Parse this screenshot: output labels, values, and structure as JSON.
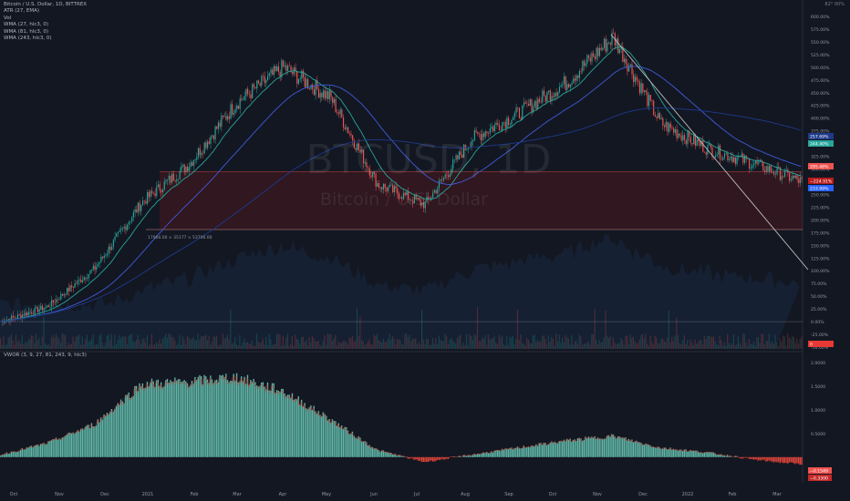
{
  "legend": {
    "symbol": "Bitcoin / U.S. Dollar, 1D, BITTREX",
    "lines": [
      "ATR (27, EMA)",
      "Vol",
      "WMA (27, hlc3, 0)",
      "WMA (81, hlc3, 0)",
      "WMA (243, hlc3, 0)"
    ]
  },
  "watermark": {
    "big": "BTCUSD, 1D",
    "small": "Bitcoin / U.S. Dollar"
  },
  "corner_label": "82° 00%",
  "oscillator_legend": "VWOR (3, 9, 27, 81, 243, 9, hlc3)",
  "range_box_label": "17960.00 × 35177 × 53706.00",
  "price_axis": {
    "labels": [
      "600.00%",
      "575.00%",
      "550.00%",
      "525.00%",
      "500.00%",
      "475.00%",
      "450.00%",
      "425.00%",
      "400.00%",
      "375.00%",
      "350.00%",
      "325.00%",
      "300.00%",
      "275.00%",
      "250.00%",
      "225.00%",
      "200.00%",
      "175.00%",
      "150.00%",
      "125.00%",
      "100.00%",
      "75.00%",
      "50.00%",
      "25.00%",
      "0.00%",
      "-25.00%",
      "-50.00%"
    ],
    "tags": [
      {
        "text": "257.69%",
        "color": "#1e3a8a"
      },
      {
        "text": "244.40%",
        "color": "#26a69a"
      },
      {
        "text": "295.48%",
        "color": "#ef5350"
      },
      {
        "text": "−224.91%",
        "color": "#b71c1c"
      },
      {
        "text": "233.99%",
        "color": "#2962ff"
      },
      {
        "text": "0",
        "color": "#e53935"
      }
    ]
  },
  "osc_axis": {
    "labels": [
      "2.0000",
      "1.5000",
      "1.0000",
      "0.5000"
    ],
    "tags": [
      {
        "text": "−0.1549",
        "color": "#ef5350"
      },
      {
        "text": "−0.3300",
        "color": "#c62828"
      }
    ]
  },
  "time_axis": {
    "labels": [
      "Oct",
      "Nov",
      "Dec",
      "2021",
      "Feb",
      "Mar",
      "Apr",
      "May",
      "Jun",
      "Jul",
      "Aug",
      "Sep",
      "Oct",
      "Nov",
      "Dec",
      "2022",
      "Feb",
      "Mar"
    ]
  },
  "colors": {
    "bg": "#131722",
    "up": "#26a69a",
    "down": "#ef5350",
    "wma27": "#26a69a",
    "wma81": "#3f5bd8",
    "wma243": "#1e3a8a",
    "hist_up": "#5fb5a7",
    "hist_down": "#e0453a",
    "trend": "#c0c0c0"
  },
  "chart_data": [
    {
      "type": "line",
      "title": "Bitcoin / U.S. Dollar, 1D, BITTREX",
      "ylabel": "% change",
      "scale": "log",
      "x": [
        "Oct",
        "Nov",
        "Dec",
        "2021",
        "Feb",
        "Mar",
        "Apr",
        "May",
        "Jun",
        "Jul",
        "Aug",
        "Sep",
        "Oct",
        "Nov",
        "Dec",
        "2022",
        "Feb",
        "Mar"
      ],
      "series": [
        {
          "name": "BTCUSD",
          "values": [
            0,
            30,
            105,
            235,
            310,
            430,
            500,
            440,
            270,
            230,
            360,
            410,
            470,
            560,
            390,
            340,
            310,
            275
          ]
        }
      ],
      "ylim": [
        -50,
        600
      ]
    },
    {
      "type": "bar",
      "title": "VWOR (3, 9, 27, 81, 243, 9, hlc3)",
      "categories": [
        "Oct",
        "Nov",
        "Dec",
        "2021",
        "Feb",
        "Mar",
        "Apr",
        "May",
        "Jun",
        "Jul",
        "Aug",
        "Sep",
        "Oct",
        "Nov",
        "Dec",
        "2022",
        "Feb",
        "Mar"
      ],
      "values": [
        0.05,
        0.3,
        0.7,
        1.55,
        1.6,
        1.7,
        1.4,
        0.8,
        0.15,
        -0.1,
        0.05,
        0.2,
        0.35,
        0.45,
        0.2,
        0.1,
        -0.05,
        -0.15
      ],
      "ylim": [
        -0.35,
        2.0
      ]
    }
  ]
}
